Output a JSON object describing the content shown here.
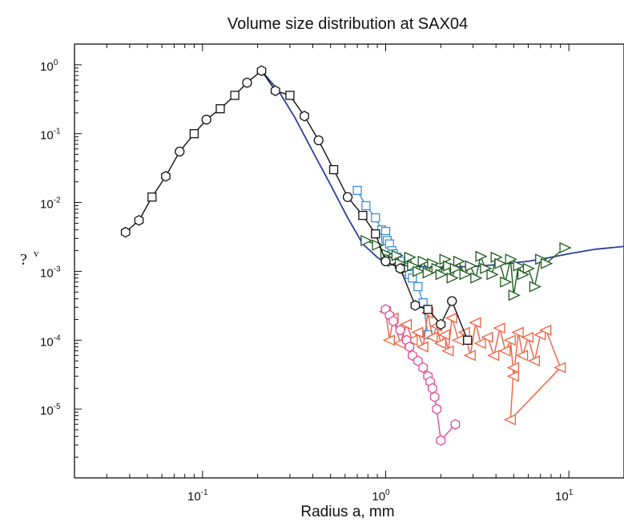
{
  "chart_data": {
    "type": "scatter",
    "title": "Volume size distribution at SAX04",
    "xlabel": "Radius a, mm",
    "ylabel": "?",
    "ylabel_superscript": "v",
    "x_scale": "log",
    "y_scale": "log",
    "xlim": [
      0.02,
      20
    ],
    "ylim": [
      1e-06,
      2
    ],
    "grid": false,
    "legend": "none",
    "x_ticks": [
      {
        "value": 0.1,
        "base": "10",
        "exp": "-1"
      },
      {
        "value": 1,
        "base": "10",
        "exp": "0"
      },
      {
        "value": 10,
        "base": "10",
        "exp": "1"
      }
    ],
    "y_ticks": [
      {
        "value": 1,
        "base": "10",
        "exp": "0"
      },
      {
        "value": 0.1,
        "base": "10",
        "exp": "-1"
      },
      {
        "value": 0.01,
        "base": "10",
        "exp": "-2"
      },
      {
        "value": 0.001,
        "base": "10",
        "exp": "-3"
      },
      {
        "value": 0.0001,
        "base": "10",
        "exp": "-4"
      },
      {
        "value": 1e-05,
        "base": "10",
        "exp": "-5"
      }
    ],
    "series": [
      {
        "color": "#2b3f9e",
        "marker": "none",
        "x": [
          0.21,
          0.26,
          0.32,
          0.4,
          0.5,
          0.62,
          0.75,
          0.9,
          1.0,
          1.2,
          1.5,
          2.0,
          3.0,
          4.0,
          6.0,
          8.0,
          10.0,
          14.0,
          20.0
        ],
        "y": [
          0.82,
          0.42,
          0.17,
          0.055,
          0.018,
          0.006,
          0.0025,
          0.0016,
          0.0013,
          0.0012,
          0.00118,
          0.00115,
          0.00118,
          0.00125,
          0.0014,
          0.0016,
          0.0018,
          0.0021,
          0.0023
        ]
      },
      {
        "color": "#3b8fe0",
        "marker": "square",
        "x": [
          0.7,
          0.78,
          0.88,
          0.95,
          1.0,
          1.0,
          1.02,
          1.05,
          1.08,
          1.1,
          1.15,
          1.2,
          1.25,
          1.3,
          1.35,
          1.4,
          1.5,
          1.6,
          1.7
        ],
        "y": [
          0.015,
          0.009,
          0.006,
          0.004,
          0.0038,
          0.003,
          0.0028,
          0.0025,
          0.002,
          0.0018,
          0.0016,
          0.0014,
          0.0012,
          0.001,
          0.0009,
          0.0008,
          0.0006,
          0.00035,
          0.00012
        ]
      },
      {
        "color": "#1e5c1e",
        "marker": "triangle-right",
        "x": [
          0.78,
          0.9,
          1.0,
          1.05,
          1.1,
          1.15,
          1.2,
          1.3,
          1.35,
          1.4,
          1.5,
          1.6,
          1.7,
          1.8,
          1.9,
          2.0,
          2.1,
          2.2,
          2.3,
          2.4,
          2.5,
          2.7,
          2.9,
          3.1,
          3.3,
          3.5,
          3.8,
          4.0,
          4.2,
          4.5,
          4.8,
          5.0,
          5.3,
          5.6,
          6.0,
          6.5,
          7.0,
          7.5,
          9.5
        ],
        "y": [
          0.0028,
          0.0024,
          0.0018,
          0.0015,
          0.0014,
          0.0017,
          0.0013,
          0.0011,
          0.0016,
          0.0012,
          0.001,
          0.0014,
          0.00095,
          0.0013,
          0.0011,
          0.0009,
          0.0015,
          0.0012,
          0.0008,
          0.0011,
          0.0014,
          0.0009,
          0.0012,
          0.0008,
          0.00165,
          0.0011,
          0.0009,
          0.0016,
          0.0013,
          0.0007,
          0.0015,
          0.00045,
          0.0012,
          0.0009,
          0.0011,
          0.0006,
          0.0015,
          0.0013,
          0.0022
        ]
      },
      {
        "color": "#f06040",
        "marker": "triangle-left",
        "x": [
          1.0,
          1.05,
          1.1,
          1.2,
          1.3,
          1.4,
          1.5,
          1.6,
          1.7,
          1.8,
          1.9,
          2.0,
          2.1,
          2.2,
          2.3,
          2.5,
          2.7,
          2.9,
          3.1,
          3.3,
          3.6,
          3.9,
          4.2,
          4.5,
          4.8,
          5.0,
          5.3,
          5.6,
          6.0,
          6.5,
          7.0,
          7.5,
          9.0,
          4.8,
          5.0
        ],
        "y": [
          0.00026,
          0.0001,
          0.00021,
          9e-05,
          0.00017,
          0.0001,
          0.00013,
          8e-05,
          0.00025,
          0.00011,
          0.00016,
          9e-05,
          0.00012,
          7e-05,
          0.00021,
          0.0001,
          0.00013,
          6e-05,
          0.00018,
          9e-05,
          0.00011,
          6e-05,
          0.00015,
          7e-05,
          0.0001,
          3e-05,
          0.00013,
          6e-05,
          0.00011,
          5e-05,
          0.00012,
          0.00014,
          4e-05,
          7e-06,
          4e-05
        ]
      },
      {
        "color": "#e04aa0",
        "marker": "hexagon",
        "x": [
          1.0,
          1.05,
          1.1,
          1.2,
          1.3,
          1.35,
          1.4,
          1.5,
          1.6,
          1.7,
          1.75,
          1.8,
          1.85,
          1.9,
          2.0,
          2.4
        ],
        "y": [
          0.00028,
          0.00023,
          0.00019,
          0.00014,
          0.0001,
          8e-05,
          6e-05,
          5e-05,
          4e-05,
          3e-05,
          2.5e-05,
          2e-05,
          1.5e-05,
          1e-05,
          3.5e-06,
          6e-06
        ]
      },
      {
        "color": "#111111",
        "marker": "mixed",
        "x": [
          0.038,
          0.045,
          0.053,
          0.063,
          0.075,
          0.09,
          0.105,
          0.125,
          0.15,
          0.175,
          0.21,
          0.25,
          0.3,
          0.36,
          0.43,
          0.52,
          0.62,
          0.75,
          0.88,
          1.0,
          1.2,
          1.45,
          1.7,
          2.0,
          2.3,
          2.8
        ],
        "y": [
          0.0037,
          0.0055,
          0.012,
          0.024,
          0.055,
          0.1,
          0.16,
          0.23,
          0.36,
          0.55,
          0.82,
          0.42,
          0.36,
          0.18,
          0.08,
          0.03,
          0.012,
          0.0065,
          0.0035,
          0.0014,
          0.0011,
          0.00032,
          0.00028,
          0.00017,
          0.00037,
          0.0001
        ]
      }
    ]
  }
}
